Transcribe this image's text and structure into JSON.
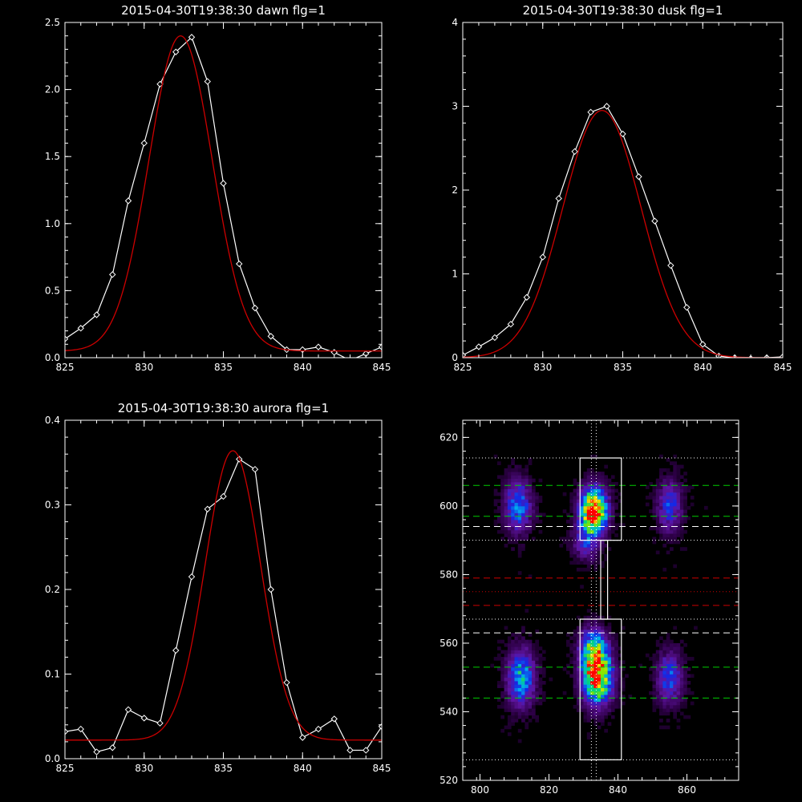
{
  "chart_data": [
    {
      "type": "line",
      "title": "2015-04-30T19:38:30 dawn flg=1",
      "xlim": [
        825,
        845
      ],
      "ylim": [
        0,
        2.5
      ],
      "xticks": [
        "825",
        "830",
        "835",
        "840",
        "845"
      ],
      "yticks": [
        "0.0",
        "0.5",
        "1.0",
        "1.5",
        "2.0",
        "2.5"
      ],
      "series": [
        {
          "color": "#ffffff",
          "marker": "diamond",
          "x": [
            825,
            826,
            827,
            828,
            829,
            830,
            831,
            832,
            833,
            834,
            835,
            836,
            837,
            838,
            839,
            840,
            841,
            842,
            843,
            844,
            845
          ],
          "y": [
            0.14,
            0.22,
            0.32,
            0.62,
            1.17,
            1.6,
            2.04,
            2.28,
            2.39,
            2.06,
            1.3,
            0.7,
            0.37,
            0.16,
            0.06,
            0.06,
            0.08,
            0.04,
            -0.02,
            0.03,
            0.08
          ]
        },
        {
          "color": "#cc0000",
          "fit": "gaussian",
          "amp": 2.35,
          "mu": 832.3,
          "sigma": 2.0,
          "base": 0.05
        }
      ]
    },
    {
      "type": "line",
      "title": "2015-04-30T19:38:30 dusk flg=1",
      "xlim": [
        825,
        845
      ],
      "ylim": [
        0,
        4
      ],
      "xticks": [
        "825",
        "830",
        "835",
        "840",
        "845"
      ],
      "yticks": [
        "0",
        "1",
        "2",
        "3",
        "4"
      ],
      "series": [
        {
          "color": "#ffffff",
          "marker": "diamond",
          "x": [
            825,
            826,
            827,
            828,
            829,
            830,
            831,
            832,
            833,
            834,
            835,
            836,
            837,
            838,
            839,
            840,
            841,
            842,
            843,
            844,
            845
          ],
          "y": [
            0.03,
            0.13,
            0.24,
            0.4,
            0.72,
            1.2,
            1.9,
            2.46,
            2.93,
            3.0,
            2.67,
            2.16,
            1.63,
            1.1,
            0.6,
            0.16,
            0.02,
            0.0,
            -0.01,
            0.0,
            0.01
          ]
        },
        {
          "color": "#cc0000",
          "fit": "gaussian",
          "amp": 2.95,
          "mu": 833.7,
          "sigma": 2.45,
          "base": 0.0
        }
      ]
    },
    {
      "type": "line",
      "title": "2015-04-30T19:38:30 aurora flg=1",
      "xlim": [
        825,
        845
      ],
      "ylim": [
        0,
        0.4
      ],
      "xticks": [
        "825",
        "830",
        "835",
        "840",
        "845"
      ],
      "yticks": [
        "0.0",
        "0.1",
        "0.2",
        "0.3",
        "0.4"
      ],
      "series": [
        {
          "color": "#ffffff",
          "marker": "diamond",
          "x": [
            825,
            826,
            827,
            828,
            829,
            830,
            831,
            832,
            833,
            834,
            835,
            836,
            837,
            838,
            839,
            840,
            841,
            842,
            843,
            844,
            845
          ],
          "y": [
            0.032,
            0.035,
            0.008,
            0.013,
            0.058,
            0.048,
            0.042,
            0.128,
            0.215,
            0.295,
            0.31,
            0.354,
            0.342,
            0.2,
            0.09,
            0.025,
            0.035,
            0.047,
            0.01,
            0.01,
            0.038
          ]
        },
        {
          "color": "#cc0000",
          "fit": "gaussian",
          "amp": 0.342,
          "mu": 835.6,
          "sigma": 1.75,
          "base": 0.022
        }
      ]
    },
    {
      "type": "heatmap",
      "title": "",
      "xlim": [
        795,
        875
      ],
      "ylim": [
        520,
        625
      ],
      "xticks": [
        "800",
        "820",
        "840",
        "860"
      ],
      "yticks": [
        "520",
        "540",
        "560",
        "580",
        "600",
        "620"
      ],
      "blobs": [
        {
          "x": 833,
          "y": 600,
          "sx": 2.6,
          "sy": 4.0,
          "amp": 0.78
        },
        {
          "x": 833,
          "y": 596,
          "sx": 2.4,
          "sy": 3.0,
          "amp": 0.45
        },
        {
          "x": 831,
          "y": 590,
          "sx": 2.6,
          "sy": 3.5,
          "amp": 0.3
        },
        {
          "x": 834,
          "y": 550,
          "sx": 2.8,
          "sy": 5.0,
          "amp": 0.95
        },
        {
          "x": 833,
          "y": 558,
          "sx": 2.6,
          "sy": 4.0,
          "amp": 0.6
        },
        {
          "x": 811,
          "y": 600,
          "sx": 2.6,
          "sy": 5.0,
          "amp": 0.42
        },
        {
          "x": 812,
          "y": 550,
          "sx": 2.6,
          "sy": 5.5,
          "amp": 0.5
        },
        {
          "x": 855,
          "y": 600,
          "sx": 2.4,
          "sy": 5.0,
          "amp": 0.32
        },
        {
          "x": 855,
          "y": 550,
          "sx": 2.4,
          "sy": 5.0,
          "amp": 0.36
        }
      ],
      "boxes": [
        {
          "x0": 829,
          "x1": 841,
          "y0": 590,
          "y1": 614
        },
        {
          "x0": 829,
          "x1": 841,
          "y0": 526,
          "y1": 567
        },
        {
          "x0": 835,
          "x1": 837,
          "y0": 567,
          "y1": 590
        }
      ],
      "hlines": [
        {
          "y": 614,
          "color": "#ffffff",
          "dash": "dotted"
        },
        {
          "y": 606,
          "color": "#00cc00",
          "dash": "dashed"
        },
        {
          "y": 597,
          "color": "#00cc00",
          "dash": "dashed"
        },
        {
          "y": 594,
          "color": "#ffffff",
          "dash": "dashed"
        },
        {
          "y": 590,
          "color": "#ffffff",
          "dash": "dotted"
        },
        {
          "y": 579,
          "color": "#cc0000",
          "dash": "dashed"
        },
        {
          "y": 575,
          "color": "#cc0000",
          "dash": "dotted"
        },
        {
          "y": 571,
          "color": "#cc0000",
          "dash": "dashed"
        },
        {
          "y": 567,
          "color": "#ffffff",
          "dash": "dotted"
        },
        {
          "y": 563,
          "color": "#ffffff",
          "dash": "dashed"
        },
        {
          "y": 553,
          "color": "#00cc00",
          "dash": "dashed"
        },
        {
          "y": 544,
          "color": "#00cc00",
          "dash": "dashed"
        },
        {
          "y": 526,
          "color": "#ffffff",
          "dash": "dotted"
        }
      ],
      "vlines": [
        {
          "x": 832.3,
          "color": "#ffffff",
          "dash": "dotted"
        },
        {
          "x": 833.7,
          "color": "#ffffff",
          "dash": "dotted"
        }
      ]
    }
  ]
}
